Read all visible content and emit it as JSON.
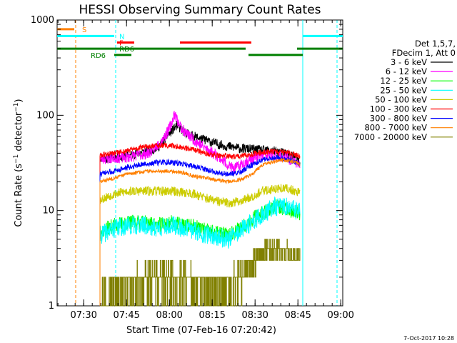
{
  "chart_data": {
    "type": "line",
    "title": "HESSI Observing Summary Count Rates",
    "xlabel": "Start Time (07-Feb-16 07:20:42)",
    "ylabel": "Count Rate (s^-1 detector^-1)",
    "y_scale": "log",
    "ylim": [
      1,
      1000
    ],
    "xlim_minutes": [
      0,
      100
    ],
    "y_ticks": [
      {
        "value": 1,
        "label": "1"
      },
      {
        "value": 10,
        "label": "10"
      },
      {
        "value": 100,
        "label": "100"
      },
      {
        "value": 1000,
        "label": "1000"
      }
    ],
    "x_ticks": [
      {
        "value": 9.3,
        "label": "07:30"
      },
      {
        "value": 24.3,
        "label": "07:45"
      },
      {
        "value": 39.3,
        "label": "08:00"
      },
      {
        "value": 54.3,
        "label": "08:15"
      },
      {
        "value": 69.3,
        "label": "08:30"
      },
      {
        "value": 84.3,
        "label": "08:45"
      },
      {
        "value": 99.3,
        "label": "09:00"
      }
    ],
    "legend_header": [
      "Det 1,5,7,",
      "FDecim 1, Att 0"
    ],
    "legend_position": "right",
    "series": [
      {
        "name": "3 - 6 keV",
        "color": "#000000",
        "seed": 11,
        "noise": 0.05,
        "points": [
          [
            15,
            36
          ],
          [
            18,
            35
          ],
          [
            20,
            36
          ],
          [
            24,
            37
          ],
          [
            28,
            40
          ],
          [
            32,
            42
          ],
          [
            34,
            44
          ],
          [
            36,
            48
          ],
          [
            38,
            58
          ],
          [
            40,
            68
          ],
          [
            42,
            78
          ],
          [
            44,
            68
          ],
          [
            48,
            60
          ],
          [
            52,
            55
          ],
          [
            56,
            50
          ],
          [
            60,
            47
          ],
          [
            64,
            45
          ],
          [
            68,
            44
          ],
          [
            72,
            43
          ],
          [
            76,
            42
          ],
          [
            80,
            40
          ],
          [
            82,
            38
          ],
          [
            84,
            35
          ],
          [
            85,
            30
          ]
        ]
      },
      {
        "name": "6 - 12 keV",
        "color": "#ff00ff",
        "seed": 23,
        "noise": 0.06,
        "points": [
          [
            15,
            35
          ],
          [
            18,
            35
          ],
          [
            20,
            36
          ],
          [
            24,
            36
          ],
          [
            28,
            38
          ],
          [
            32,
            40
          ],
          [
            35,
            48
          ],
          [
            38,
            62
          ],
          [
            40,
            80
          ],
          [
            41,
            105
          ],
          [
            42,
            90
          ],
          [
            44,
            70
          ],
          [
            48,
            55
          ],
          [
            52,
            45
          ],
          [
            56,
            38
          ],
          [
            60,
            30
          ],
          [
            62,
            27
          ],
          [
            64,
            30
          ],
          [
            68,
            35
          ],
          [
            72,
            38
          ],
          [
            76,
            38
          ],
          [
            80,
            36
          ],
          [
            84,
            32
          ],
          [
            85,
            30
          ]
        ]
      },
      {
        "name": "12 - 25 keV",
        "color": "#00ff00",
        "seed": 37,
        "noise": 0.08,
        "points": [
          [
            15,
            6
          ],
          [
            20,
            7
          ],
          [
            25,
            7.5
          ],
          [
            30,
            7.5
          ],
          [
            35,
            7
          ],
          [
            40,
            7.5
          ],
          [
            44,
            7
          ],
          [
            48,
            6.8
          ],
          [
            52,
            6.2
          ],
          [
            56,
            5.8
          ],
          [
            60,
            5.6
          ],
          [
            64,
            6.5
          ],
          [
            68,
            8
          ],
          [
            72,
            9.5
          ],
          [
            76,
            11
          ],
          [
            80,
            10.5
          ],
          [
            84,
            9.5
          ],
          [
            85,
            9
          ]
        ]
      },
      {
        "name": "25 - 50 keV",
        "color": "#00ffff",
        "seed": 41,
        "noise": 0.1,
        "points": [
          [
            15,
            5.5
          ],
          [
            20,
            6.5
          ],
          [
            25,
            7
          ],
          [
            30,
            7
          ],
          [
            35,
            6.5
          ],
          [
            40,
            7
          ],
          [
            44,
            6.5
          ],
          [
            48,
            6.2
          ],
          [
            52,
            5.6
          ],
          [
            56,
            5.3
          ],
          [
            60,
            5
          ],
          [
            64,
            6
          ],
          [
            68,
            7.5
          ],
          [
            72,
            9
          ],
          [
            76,
            11
          ],
          [
            80,
            11
          ],
          [
            84,
            10
          ],
          [
            85,
            9.5
          ]
        ]
      },
      {
        "name": "50 - 100 keV",
        "color": "#cccc00",
        "seed": 53,
        "noise": 0.05,
        "points": [
          [
            15,
            13
          ],
          [
            20,
            15
          ],
          [
            25,
            16
          ],
          [
            30,
            16
          ],
          [
            35,
            16
          ],
          [
            40,
            16
          ],
          [
            44,
            15.5
          ],
          [
            48,
            15
          ],
          [
            52,
            13.5
          ],
          [
            56,
            12.5
          ],
          [
            60,
            12
          ],
          [
            64,
            12.5
          ],
          [
            68,
            14
          ],
          [
            72,
            16
          ],
          [
            76,
            17
          ],
          [
            80,
            17
          ],
          [
            84,
            16
          ],
          [
            85,
            15
          ]
        ]
      },
      {
        "name": "100 - 300 keV",
        "color": "#ff0000",
        "seed": 61,
        "noise": 0.03,
        "points": [
          [
            15,
            38
          ],
          [
            20,
            40
          ],
          [
            24,
            42
          ],
          [
            28,
            45
          ],
          [
            32,
            47
          ],
          [
            36,
            48
          ],
          [
            40,
            48
          ],
          [
            44,
            46
          ],
          [
            48,
            43
          ],
          [
            52,
            40
          ],
          [
            56,
            38
          ],
          [
            60,
            37
          ],
          [
            64,
            37
          ],
          [
            68,
            39
          ],
          [
            72,
            41
          ],
          [
            76,
            42
          ],
          [
            80,
            41
          ],
          [
            84,
            38
          ],
          [
            85,
            37
          ]
        ]
      },
      {
        "name": "300 - 800 keV",
        "color": "#0000ff",
        "seed": 73,
        "noise": 0.03,
        "points": [
          [
            15,
            24
          ],
          [
            20,
            26
          ],
          [
            24,
            28
          ],
          [
            28,
            30
          ],
          [
            32,
            31
          ],
          [
            36,
            32
          ],
          [
            40,
            32
          ],
          [
            44,
            31
          ],
          [
            48,
            29
          ],
          [
            52,
            27
          ],
          [
            56,
            25
          ],
          [
            60,
            24
          ],
          [
            64,
            25
          ],
          [
            68,
            30
          ],
          [
            72,
            34
          ],
          [
            76,
            36
          ],
          [
            80,
            35
          ],
          [
            84,
            32
          ],
          [
            85,
            31
          ]
        ]
      },
      {
        "name": "800 - 7000 keV",
        "color": "#ff8000",
        "seed": 83,
        "noise": 0.02,
        "points": [
          [
            15,
            20
          ],
          [
            20,
            22
          ],
          [
            24,
            24
          ],
          [
            28,
            25
          ],
          [
            32,
            26
          ],
          [
            36,
            26
          ],
          [
            40,
            26
          ],
          [
            44,
            25
          ],
          [
            48,
            23
          ],
          [
            52,
            22
          ],
          [
            56,
            21
          ],
          [
            60,
            20
          ],
          [
            64,
            21
          ],
          [
            68,
            24
          ],
          [
            72,
            30
          ],
          [
            76,
            33
          ],
          [
            80,
            34
          ],
          [
            84,
            32
          ],
          [
            85,
            30
          ]
        ]
      },
      {
        "name": "7000 - 20000 keV",
        "color": "#808000",
        "seed": 97,
        "noise": 0.0,
        "step": true,
        "points": [
          [
            15,
            1.2
          ],
          [
            20,
            1.5
          ],
          [
            25,
            1.7
          ],
          [
            30,
            1.8
          ],
          [
            35,
            2
          ],
          [
            40,
            2
          ],
          [
            44,
            1.9
          ],
          [
            48,
            1.7
          ],
          [
            52,
            1.6
          ],
          [
            56,
            1.5
          ],
          [
            60,
            1.6
          ],
          [
            64,
            2
          ],
          [
            68,
            2.8
          ],
          [
            72,
            3.8
          ],
          [
            76,
            4
          ],
          [
            80,
            3.8
          ],
          [
            84,
            3.5
          ],
          [
            85,
            3.5
          ]
        ]
      }
    ],
    "flags": [
      {
        "label": "S",
        "color": "#ff8000",
        "y": 800,
        "segments": [
          [
            0,
            6
          ]
        ],
        "label_x": 8
      },
      {
        "label": "N",
        "color": "#00ffff",
        "y": 680,
        "segments": [
          [
            0,
            20
          ],
          [
            86,
            100
          ]
        ],
        "label_x": 21
      },
      {
        "label": "F",
        "color": "#ff0000",
        "y": 580,
        "segments": [
          [
            21,
            27
          ],
          [
            43,
            68
          ]
        ],
        "label_x": 21
      },
      {
        "label": "RD6",
        "color": "#008000",
        "y": 500,
        "segments": [
          [
            0,
            66
          ],
          [
            84,
            100
          ]
        ],
        "label_x": 21
      },
      {
        "label": "RD6",
        "color": "#008000",
        "y": 430,
        "segments": [
          [
            20,
            26
          ],
          [
            67,
            86
          ]
        ],
        "label_x": 11
      }
    ],
    "vlines": [
      {
        "x": 6.5,
        "color": "#ff8000",
        "dash": true
      },
      {
        "x": 20.5,
        "color": "#00ffff",
        "dash": true
      },
      {
        "x": 86,
        "color": "#00ffff",
        "dash": false
      },
      {
        "x": 98,
        "color": "#00ffff",
        "dash": true
      }
    ],
    "timestamp": "7-Oct-2017 10:28"
  }
}
